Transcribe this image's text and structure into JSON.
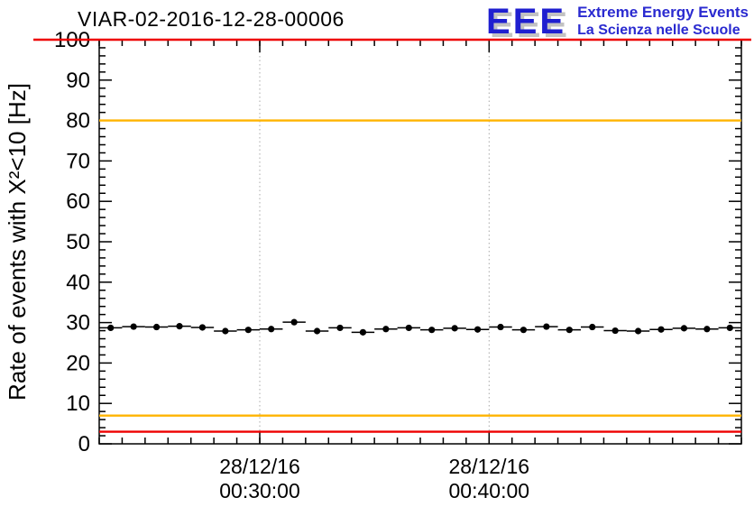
{
  "header": {
    "logo": {
      "acronym": "EEE",
      "line1": "Extreme Energy Events",
      "line2": "La Scienza nelle Scuole",
      "blue": "#2a2ad0"
    }
  },
  "chart_data": {
    "type": "scatter",
    "title": "VIAR-02-2016-12-28-00006",
    "xlabel": "",
    "ylabel": "Rate of events with X²<10 [Hz]",
    "ylim": [
      0,
      100
    ],
    "y_major_step": 10,
    "y_minor_step": 2,
    "y_tick_labels": [
      0,
      10,
      20,
      30,
      40,
      50,
      60,
      70,
      80,
      90,
      100
    ],
    "x_range_minutes": [
      0,
      28
    ],
    "x_minor_step_minutes": 1,
    "x_major_ticks": [
      {
        "minute": 7,
        "date": "28/12/16",
        "time": "00:30:00"
      },
      {
        "minute": 17,
        "date": "28/12/16",
        "time": "00:40:00"
      }
    ],
    "grid": {
      "vertical_at_major_ticks": true,
      "style": "dotted",
      "color": "#a8a8a8"
    },
    "reference_lines": [
      {
        "y": 100,
        "color": "#ee0000",
        "full_width": true
      },
      {
        "y": 80,
        "color": "#ffb400",
        "full_width": false
      },
      {
        "y": 7,
        "color": "#ffb400",
        "full_width": false
      },
      {
        "y": 3,
        "color": "#ee0000",
        "full_width": false
      }
    ],
    "series": [
      {
        "name": "rate",
        "marker": "filled-circle",
        "color": "#000000",
        "x_bin_width_minutes": 1,
        "y_error": 0.4,
        "x_minutes": [
          0.5,
          1.5,
          2.5,
          3.5,
          4.5,
          5.5,
          6.5,
          7.5,
          8.5,
          9.5,
          10.5,
          11.5,
          12.5,
          13.5,
          14.5,
          15.5,
          16.5,
          17.5,
          18.5,
          19.5,
          20.5,
          21.5,
          22.5,
          23.5,
          24.5,
          25.5,
          26.5,
          27.5
        ],
        "times": [
          "00:23:30",
          "00:24:30",
          "00:25:30",
          "00:26:30",
          "00:27:30",
          "00:28:30",
          "00:29:30",
          "00:30:30",
          "00:31:30",
          "00:32:30",
          "00:33:30",
          "00:34:30",
          "00:35:30",
          "00:36:30",
          "00:37:30",
          "00:38:30",
          "00:39:30",
          "00:40:30",
          "00:41:30",
          "00:42:30",
          "00:43:30",
          "00:44:30",
          "00:45:30",
          "00:46:30",
          "00:47:30",
          "00:48:30",
          "00:49:30",
          "00:50:30"
        ],
        "values": [
          28.7,
          29.0,
          28.9,
          29.1,
          28.8,
          27.9,
          28.2,
          28.4,
          30.1,
          27.9,
          28.7,
          27.6,
          28.4,
          28.7,
          28.2,
          28.6,
          28.3,
          28.9,
          28.2,
          29.0,
          28.2,
          28.9,
          28.0,
          27.9,
          28.3,
          28.6,
          28.4,
          28.7
        ]
      }
    ]
  }
}
